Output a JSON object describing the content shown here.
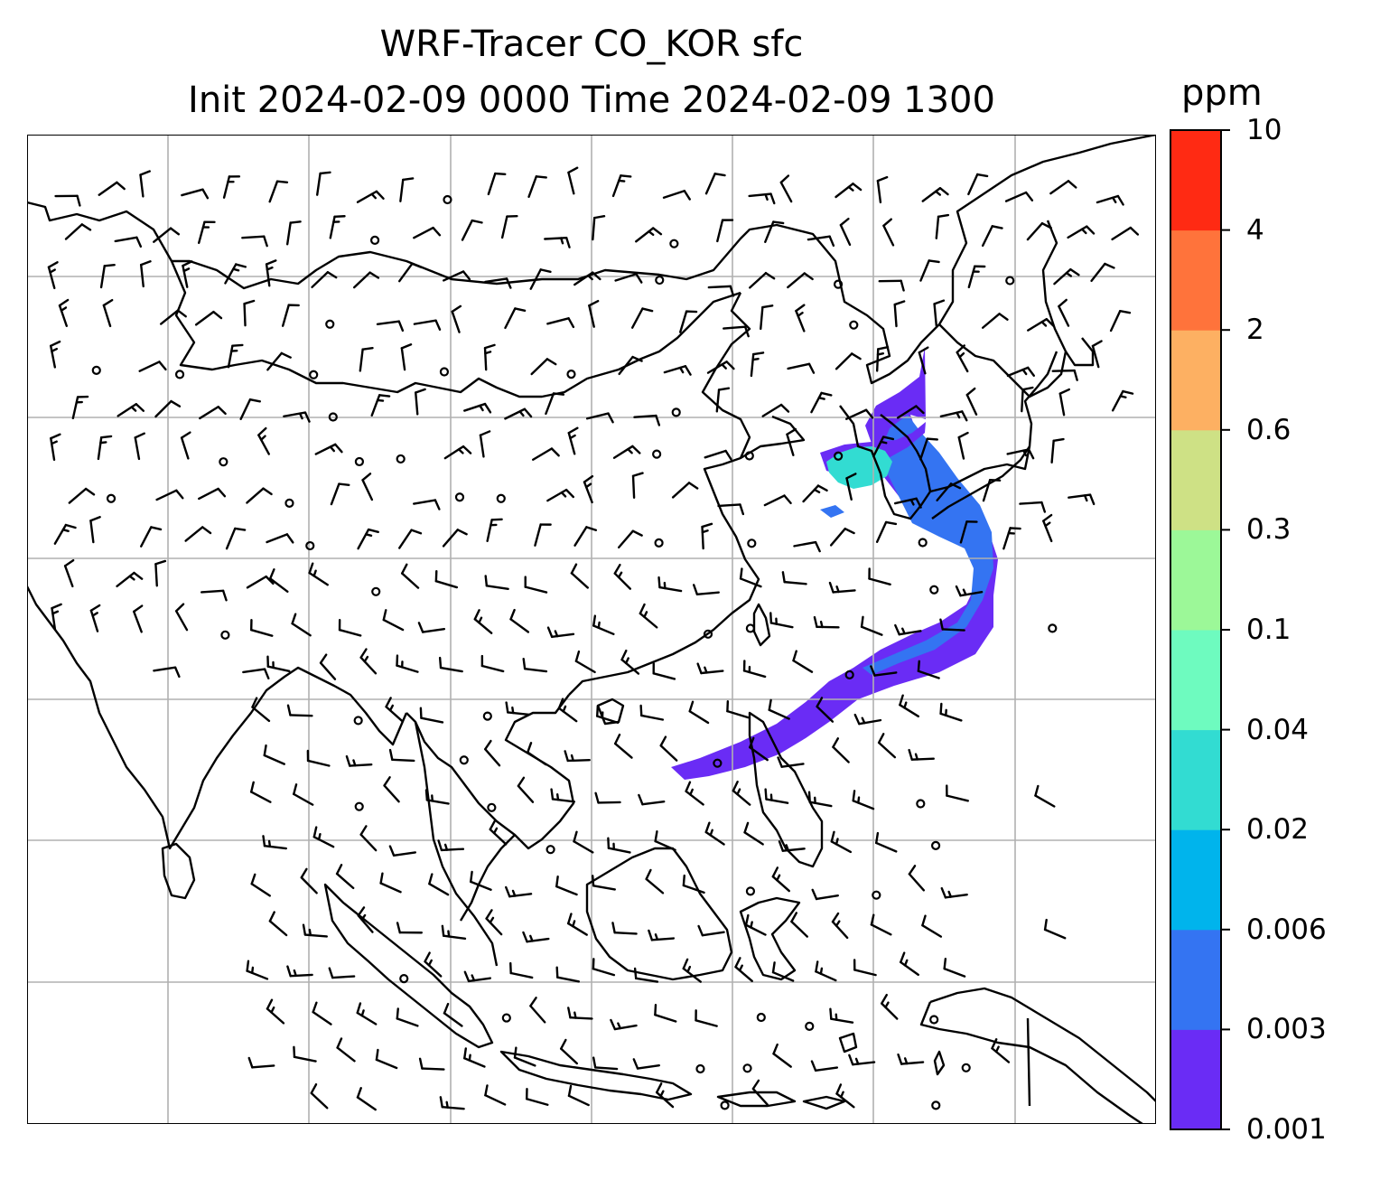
{
  "title": {
    "line1": "WRF-Tracer CO_KOR sfc",
    "line2": "Init 2024-02-09 0000 Time 2024-02-09 1300"
  },
  "colorbar": {
    "unit": "ppm",
    "levels": [
      "0.001",
      "0.003",
      "0.006",
      "0.02",
      "0.04",
      "0.1",
      "0.3",
      "0.6",
      "2",
      "4",
      "10"
    ],
    "colors": [
      "#6a2cf5",
      "#3474f2",
      "#00b4ec",
      "#32dcd2",
      "#6efbbf",
      "#9cf898",
      "#cee185",
      "#fdb062",
      "#ff733b",
      "#ff2a13"
    ]
  },
  "map": {
    "grid": "on",
    "coastline_color": "#000000",
    "grid_color": "#b0b0b0",
    "wind_barb_color": "#000000",
    "plume_colors": [
      "#6a2cf5",
      "#3474f2",
      "#32dcd2"
    ]
  }
}
